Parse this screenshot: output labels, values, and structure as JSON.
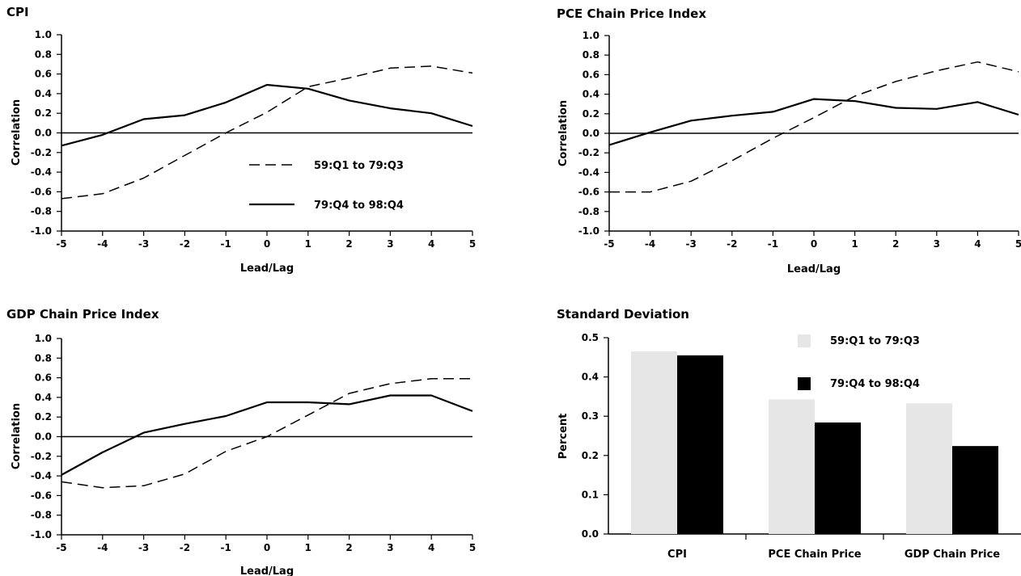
{
  "chart_data": [
    {
      "type": "line",
      "title": "CPI",
      "xlabel": "Lead/Lag",
      "ylabel": "Correlation",
      "x": [
        -5,
        -4,
        -3,
        -2,
        -1,
        0,
        1,
        2,
        3,
        4,
        5
      ],
      "xlim": [
        -5,
        5
      ],
      "ylim": [
        -1.0,
        1.0
      ],
      "y_ticks": [
        "1.0",
        "0.8",
        "0.6",
        "0.4",
        "0.2",
        "0.0",
        "-0.2",
        "-0.4",
        "-0.6",
        "-0.8",
        "-1.0"
      ],
      "x_ticks": [
        "-5",
        "-4",
        "-3",
        "-2",
        "-1",
        "0",
        "1",
        "2",
        "3",
        "4",
        "5"
      ],
      "zero_line": true,
      "legend": "inside-center",
      "series": [
        {
          "name": "59:Q1 to 79:Q3",
          "style": "dashed",
          "values": [
            -0.67,
            -0.62,
            -0.46,
            -0.23,
            0.0,
            0.21,
            0.47,
            0.56,
            0.66,
            0.68,
            0.61
          ]
        },
        {
          "name": "79:Q4 to 98:Q4",
          "style": "solid",
          "values": [
            -0.13,
            -0.02,
            0.14,
            0.18,
            0.31,
            0.49,
            0.45,
            0.33,
            0.25,
            0.2,
            0.07
          ]
        }
      ]
    },
    {
      "type": "line",
      "title": "PCE Chain Price Index",
      "xlabel": "Lead/Lag",
      "ylabel": "Correlation",
      "x": [
        -5,
        -4,
        -3,
        -2,
        -1,
        0,
        1,
        2,
        3,
        4,
        5
      ],
      "xlim": [
        -5,
        5
      ],
      "ylim": [
        -1.0,
        1.0
      ],
      "y_ticks": [
        "1.0",
        "0.8",
        "0.6",
        "0.4",
        "0.2",
        "0.0",
        "-0.2",
        "-0.4",
        "-0.6",
        "-0.8",
        "-1.0"
      ],
      "x_ticks": [
        "-5",
        "-4",
        "-3",
        "-2",
        "-1",
        "0",
        "1",
        "2",
        "3",
        "4",
        "5"
      ],
      "zero_line": true,
      "series": [
        {
          "style": "dashed",
          "values": [
            -0.6,
            -0.6,
            -0.49,
            -0.28,
            -0.05,
            0.16,
            0.38,
            0.53,
            0.64,
            0.73,
            0.63
          ]
        },
        {
          "style": "solid",
          "values": [
            -0.12,
            0.01,
            0.13,
            0.18,
            0.22,
            0.35,
            0.33,
            0.26,
            0.25,
            0.32,
            0.19
          ]
        }
      ]
    },
    {
      "type": "line",
      "title": "GDP Chain Price Index",
      "xlabel": "Lead/Lag",
      "ylabel": "Correlation",
      "x": [
        -5,
        -4,
        -3,
        -2,
        -1,
        0,
        1,
        2,
        3,
        4,
        5
      ],
      "xlim": [
        -5,
        5
      ],
      "ylim": [
        -1.0,
        1.0
      ],
      "y_ticks": [
        "1.0",
        "0.8",
        "0.6",
        "0.4",
        "0.2",
        "0.0",
        "-0.2",
        "-0.4",
        "-0.6",
        "-0.8",
        "-1.0"
      ],
      "x_ticks": [
        "-5",
        "-4",
        "-3",
        "-2",
        "-1",
        "0",
        "1",
        "2",
        "3",
        "4",
        "5"
      ],
      "zero_line": true,
      "series": [
        {
          "style": "dashed",
          "values": [
            -0.46,
            -0.52,
            -0.5,
            -0.38,
            -0.15,
            0.0,
            0.22,
            0.44,
            0.54,
            0.59,
            0.59
          ]
        },
        {
          "style": "solid",
          "values": [
            -0.39,
            -0.16,
            0.04,
            0.13,
            0.21,
            0.35,
            0.35,
            0.33,
            0.42,
            0.42,
            0.26
          ]
        }
      ]
    },
    {
      "type": "bar",
      "title": "Standard Deviation",
      "xlabel": "",
      "ylabel": "Percent",
      "categories": [
        "CPI",
        "PCE Chain Price",
        "GDP Chain Price"
      ],
      "ylim": [
        0.0,
        0.5
      ],
      "y_ticks": [
        "0.5",
        "0.4",
        "0.3",
        "0.2",
        "0.1",
        "0.0"
      ],
      "legend": "top-center",
      "series": [
        {
          "name": "59:Q1 to 79:Q3",
          "color": "#e6e6e6",
          "values": [
            0.465,
            0.343,
            0.333
          ]
        },
        {
          "name": "79:Q4 to 98:Q4",
          "color": "#000000",
          "values": [
            0.455,
            0.284,
            0.224
          ]
        }
      ]
    }
  ]
}
